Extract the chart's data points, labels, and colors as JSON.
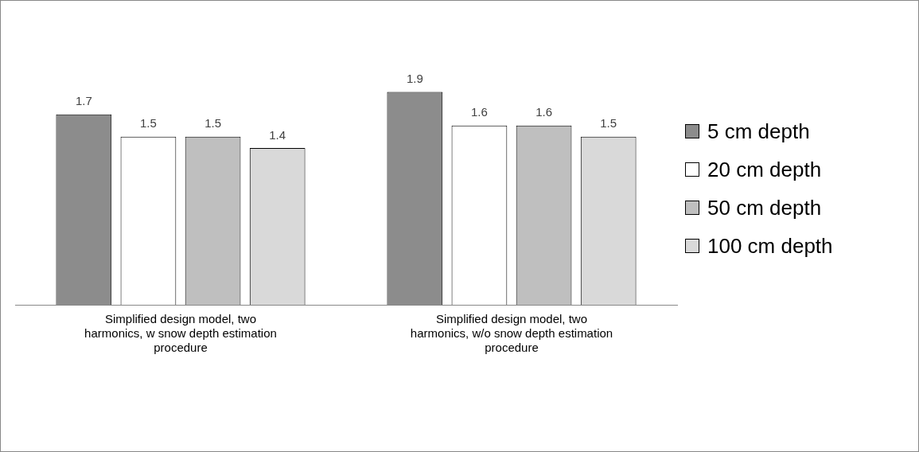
{
  "chart_data": {
    "type": "bar",
    "categories": [
      "Simplified design model, two harmonics, w snow depth estimation procedure",
      "Simplified design model, two harmonics, w/o snow depth estimation procedure"
    ],
    "series": [
      {
        "name": "5 cm depth",
        "color": "#8c8c8c",
        "values": [
          1.7,
          1.9
        ]
      },
      {
        "name": "20 cm depth",
        "color": "#ffffff",
        "values": [
          1.5,
          1.6
        ]
      },
      {
        "name": "50 cm depth",
        "color": "#bfbfbf",
        "values": [
          1.5,
          1.6
        ]
      },
      {
        "name": "100 cm depth",
        "color": "#d9d9d9",
        "values": [
          1.4,
          1.5
        ]
      }
    ],
    "data_labels": true,
    "legend": "right",
    "grid": false
  }
}
